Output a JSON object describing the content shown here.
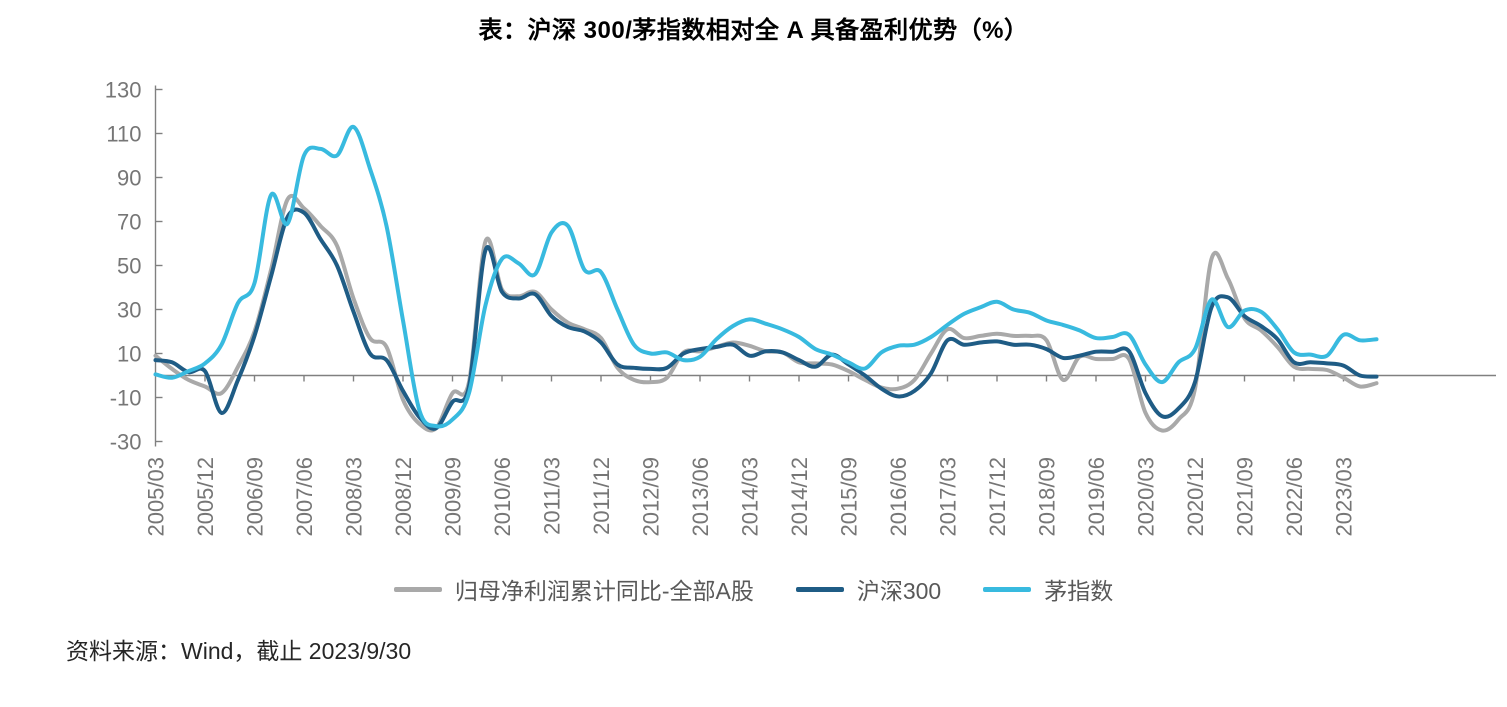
{
  "title": "表：沪深 300/茅指数相对全 A 具备盈利优势（%）",
  "source_note": "资料来源：Wind，截止 2023/9/30",
  "colors": {
    "all_a": "#A9A9A9",
    "hs300": "#1F5C85",
    "mao": "#38BADF",
    "axis": "#808080",
    "tick_label": "#767676",
    "legend_text": "#595959"
  },
  "chart_data": {
    "type": "line",
    "title": "表：沪深 300/茅指数相对全 A 具备盈利优势（%）",
    "xlabel": "",
    "ylabel": "",
    "ylim": [
      -30,
      130
    ],
    "y_ticks": [
      130,
      110,
      90,
      70,
      50,
      30,
      10,
      -10,
      -30
    ],
    "grid": false,
    "zero_line": true,
    "legend_position": "bottom",
    "x_tick_labels": [
      "2005/03",
      "2005/12",
      "2006/09",
      "2007/06",
      "2008/03",
      "2008/12",
      "2009/09",
      "2010/06",
      "2011/03",
      "2011/12",
      "2012/09",
      "2013/06",
      "2014/03",
      "2014/12",
      "2015/09",
      "2016/06",
      "2017/03",
      "2017/12",
      "2018/09",
      "2019/06",
      "2020/03",
      "2020/12",
      "2021/09",
      "2022/06",
      "2023/03"
    ],
    "x": [
      "2005/03",
      "2005/06",
      "2005/09",
      "2005/12",
      "2006/03",
      "2006/06",
      "2006/09",
      "2006/12",
      "2007/03",
      "2007/06",
      "2007/09",
      "2007/12",
      "2008/03",
      "2008/06",
      "2008/09",
      "2008/12",
      "2009/03",
      "2009/06",
      "2009/09",
      "2009/12",
      "2010/03",
      "2010/06",
      "2010/09",
      "2010/12",
      "2011/03",
      "2011/06",
      "2011/09",
      "2011/12",
      "2012/03",
      "2012/06",
      "2012/09",
      "2012/12",
      "2013/03",
      "2013/06",
      "2013/09",
      "2013/12",
      "2014/03",
      "2014/06",
      "2014/09",
      "2014/12",
      "2015/03",
      "2015/06",
      "2015/09",
      "2015/12",
      "2016/03",
      "2016/06",
      "2016/09",
      "2016/12",
      "2017/03",
      "2017/06",
      "2017/09",
      "2017/12",
      "2018/03",
      "2018/06",
      "2018/09",
      "2018/12",
      "2019/03",
      "2019/06",
      "2019/09",
      "2019/12",
      "2020/03",
      "2020/06",
      "2020/09",
      "2020/12",
      "2021/03",
      "2021/06",
      "2021/09",
      "2021/12",
      "2022/03",
      "2022/06",
      "2022/09",
      "2022/12",
      "2023/03",
      "2023/06",
      "2023/09"
    ],
    "series": [
      {
        "name": "归母净利润累计同比-全部A股",
        "color_key": "all_a",
        "values": [
          9,
          3,
          -2,
          -5,
          -8,
          4,
          20,
          48,
          80,
          76,
          68,
          59,
          35,
          17,
          13,
          -11,
          -22,
          -24,
          -8,
          -3,
          61,
          39,
          36,
          38,
          30,
          24,
          21,
          17,
          3.5,
          -2,
          -3,
          -1,
          10.5,
          11,
          13,
          15,
          13.5,
          11,
          10.5,
          6,
          5.5,
          5,
          2,
          -2,
          -5.5,
          -6,
          -2,
          10,
          21,
          17,
          18,
          19,
          18,
          18,
          16,
          -2,
          8.5,
          7.5,
          7.5,
          7.5,
          -17,
          -25,
          -20,
          -6,
          53,
          44,
          26,
          20.5,
          13,
          4,
          3,
          2.5,
          -1,
          -5,
          -3.5
        ]
      },
      {
        "name": "沪深300",
        "color_key": "hs300",
        "values": [
          7,
          6,
          1.5,
          2,
          -17,
          -2,
          18,
          45,
          72,
          74,
          62,
          50,
          29,
          10,
          7,
          -7,
          -19,
          -24,
          -12,
          -5,
          57,
          38,
          35,
          37,
          27,
          22,
          20,
          15,
          5,
          3.5,
          3,
          3.5,
          10,
          12,
          13,
          14,
          9,
          11,
          10.5,
          7,
          4,
          9.5,
          5,
          0,
          -6,
          -9.5,
          -7,
          1,
          16,
          14,
          15,
          15.5,
          14,
          14,
          12,
          8,
          9,
          10.8,
          10.8,
          11,
          -8,
          -18.5,
          -15,
          -3,
          31,
          35.5,
          27,
          22.5,
          16.5,
          6,
          6,
          5.5,
          4.5,
          0,
          -0.5
        ]
      },
      {
        "name": "茅指数",
        "color_key": "mao",
        "values": [
          0.5,
          -1,
          2,
          5.5,
          14,
          33,
          42,
          82,
          69,
          100,
          103,
          100,
          113,
          94,
          68,
          25,
          -16,
          -23,
          -20,
          -8,
          32,
          53,
          51,
          46,
          65,
          68,
          48,
          47,
          30,
          14,
          10,
          10.5,
          7,
          8.5,
          16.5,
          22.5,
          25.5,
          23.5,
          21,
          17.5,
          12,
          9.5,
          6,
          3.2,
          10.5,
          13.5,
          14,
          17.5,
          23,
          28,
          31,
          33.5,
          30,
          28.5,
          25,
          23,
          20.5,
          17,
          17.5,
          18.5,
          5,
          -3,
          6,
          12,
          34.5,
          22,
          29.5,
          29,
          21,
          10.5,
          9.5,
          9,
          18.5,
          16,
          16.5
        ]
      }
    ]
  }
}
